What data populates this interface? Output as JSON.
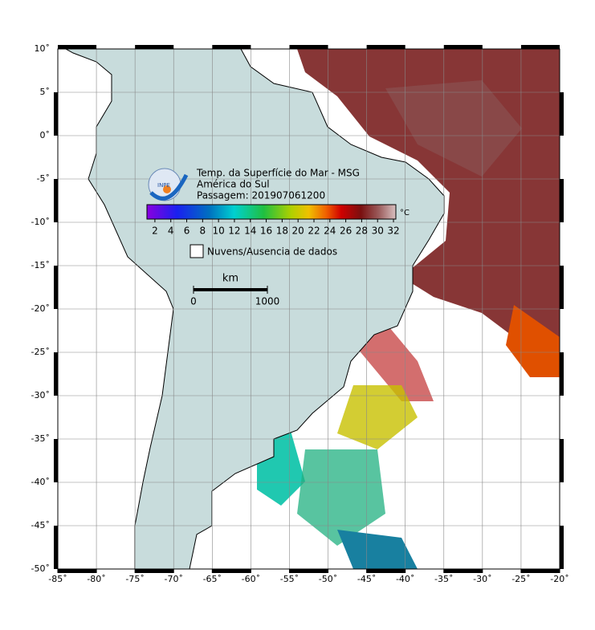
{
  "map": {
    "title": "Temp. da Superfície do Mar - MSG",
    "region": "América do Sul",
    "pass": "Passagem: 201907061200",
    "logo": "INPE",
    "colorbar": {
      "unit": "°C",
      "range": [
        1,
        32.3
      ],
      "ticks": [
        2,
        4,
        6,
        8,
        10,
        12,
        14,
        16,
        18,
        20,
        22,
        24,
        26,
        28,
        30,
        32
      ]
    },
    "legend": {
      "no_data": "Nuvens/Ausencia de dados"
    },
    "scale_bar": {
      "unit": "km",
      "ticks": [
        0,
        1000
      ]
    },
    "lon_range": [
      -85,
      -20
    ],
    "lat_range": [
      -50,
      10
    ],
    "lon_ticks": [
      {
        "value": -85,
        "label": "-85˚"
      },
      {
        "value": -80,
        "label": "-80˚"
      },
      {
        "value": -75,
        "label": "-75˚"
      },
      {
        "value": -70,
        "label": "-70˚"
      },
      {
        "value": -65,
        "label": "-65˚"
      },
      {
        "value": -60,
        "label": "-60˚"
      },
      {
        "value": -55,
        "label": "-55˚"
      },
      {
        "value": -50,
        "label": "-50˚"
      },
      {
        "value": -45,
        "label": "-45˚"
      },
      {
        "value": -40,
        "label": "-40˚"
      },
      {
        "value": -35,
        "label": "-35˚"
      },
      {
        "value": -30,
        "label": "-30˚"
      },
      {
        "value": -25,
        "label": "-25˚"
      },
      {
        "value": -20,
        "label": "-20˚"
      }
    ],
    "lat_ticks": [
      {
        "value": 10,
        "label": "10˚"
      },
      {
        "value": 5,
        "label": "5˚"
      },
      {
        "value": 0,
        "label": "0˚"
      },
      {
        "value": -5,
        "label": "-5˚"
      },
      {
        "value": -10,
        "label": "-10˚"
      },
      {
        "value": -15,
        "label": "-15˚"
      },
      {
        "value": -20,
        "label": "-20˚"
      },
      {
        "value": -25,
        "label": "-25˚"
      },
      {
        "value": -30,
        "label": "-30˚"
      },
      {
        "value": -35,
        "label": "-35˚"
      },
      {
        "value": -40,
        "label": "-40˚"
      },
      {
        "value": -45,
        "label": "-45˚"
      },
      {
        "value": -50,
        "label": "-50˚"
      }
    ]
  }
}
